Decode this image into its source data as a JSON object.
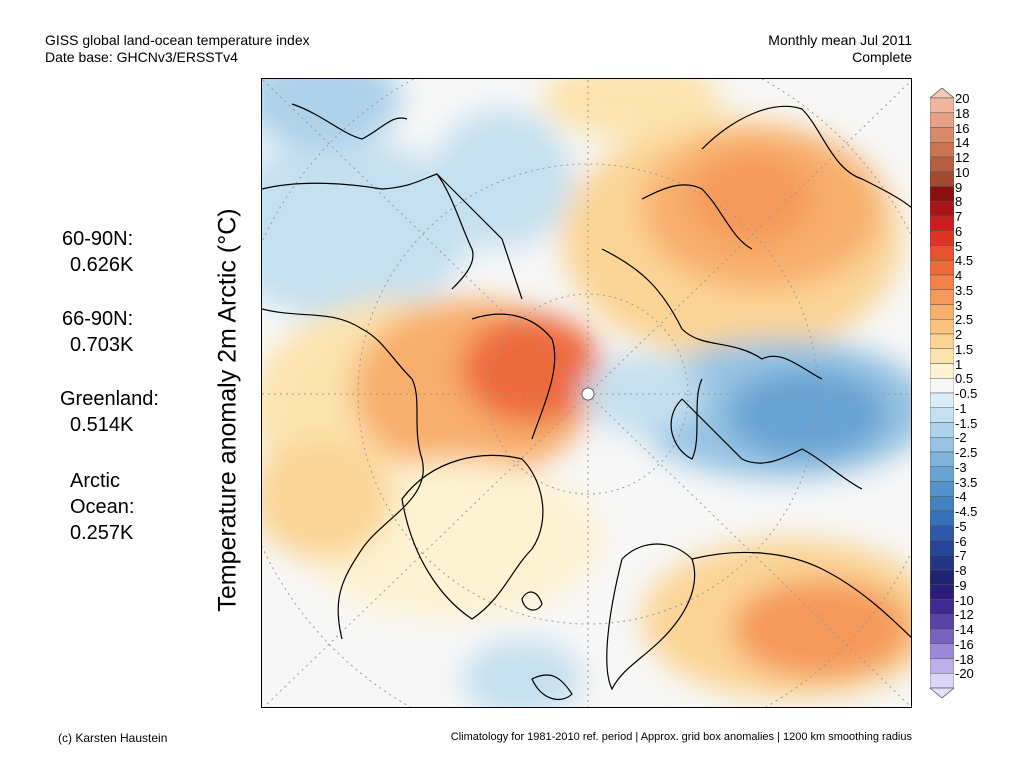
{
  "header": {
    "title_line1": "GISS global land-ocean temperature index",
    "title_line2": "Date base: GHCNv3/ERSSTv4",
    "period_line1": "Monthly mean Jul 2011",
    "period_line2": "Complete"
  },
  "stats": [
    {
      "region": "60-90N:",
      "value": "0.626K"
    },
    {
      "region": "66-90N:",
      "value": "0.703K"
    },
    {
      "region": "Greenland:",
      "value": "0.514K"
    },
    {
      "region_line1": "Arctic",
      "region_line2": "Ocean:",
      "value": "0.257K"
    }
  ],
  "y_axis_label": "Temperature anomaly 2m Arctic (°C)",
  "colorbar": {
    "labels": [
      "20",
      "18",
      "16",
      "14",
      "12",
      "10",
      "9",
      "8",
      "7",
      "6",
      "5",
      "4.5",
      "4",
      "3.5",
      "3",
      "2.5",
      "2",
      "1.5",
      "1",
      "0.5",
      "-0.5",
      "-1",
      "-1.5",
      "-2",
      "-2.5",
      "-3",
      "-3.5",
      "-4",
      "-4.5",
      "-5",
      "-6",
      "-7",
      "-8",
      "-9",
      "-10",
      "-12",
      "-14",
      "-16",
      "-18",
      "-20"
    ],
    "colors": [
      "#f0b79e",
      "#e6a083",
      "#d98a6a",
      "#c97553",
      "#b75f41",
      "#a04a30",
      "#8b0f0f",
      "#a81515",
      "#c81e1e",
      "#dd3322",
      "#e8512f",
      "#ee6a3c",
      "#f2814a",
      "#f5995a",
      "#f8ae6c",
      "#fac27f",
      "#fbd495",
      "#fce3ae",
      "#fdf2d2",
      "#f7f7f7",
      "#dcecf6",
      "#c5e0f0",
      "#aed2ea",
      "#96c3e3",
      "#7eb3db",
      "#67a3d3",
      "#5392ca",
      "#4381c1",
      "#3671b8",
      "#2c5aa8",
      "#264598",
      "#223486",
      "#1f2370",
      "#2b1e7a",
      "#3e2a8e",
      "#5a42a6",
      "#7a63c0",
      "#9b88d6",
      "#bcaee8",
      "#dcd5f6"
    ],
    "top_arrow_color": "#f4c9b6",
    "bottom_arrow_color": "#e6e0fa"
  },
  "footer": {
    "left": "(c) Karsten Haustein",
    "right": "Climatology for 1981-2010 ref. period | Approx. grid box anomalies | 1200 km smoothing radius"
  }
}
